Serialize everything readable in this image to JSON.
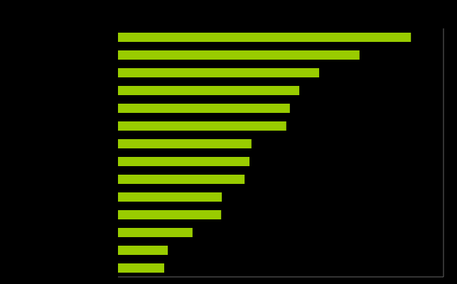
{
  "chart_data": {
    "type": "barh",
    "categories": [
      null,
      null,
      null,
      null,
      null,
      null,
      null,
      null,
      null,
      null,
      null,
      null,
      null,
      null
    ],
    "values": [
      90.0,
      74.2,
      61.8,
      55.7,
      52.8,
      51.7,
      41.0,
      40.4,
      38.9,
      31.9,
      31.7,
      22.9,
      15.3,
      14.2
    ],
    "color": "#99cc00",
    "xlim": [
      0,
      100
    ]
  }
}
